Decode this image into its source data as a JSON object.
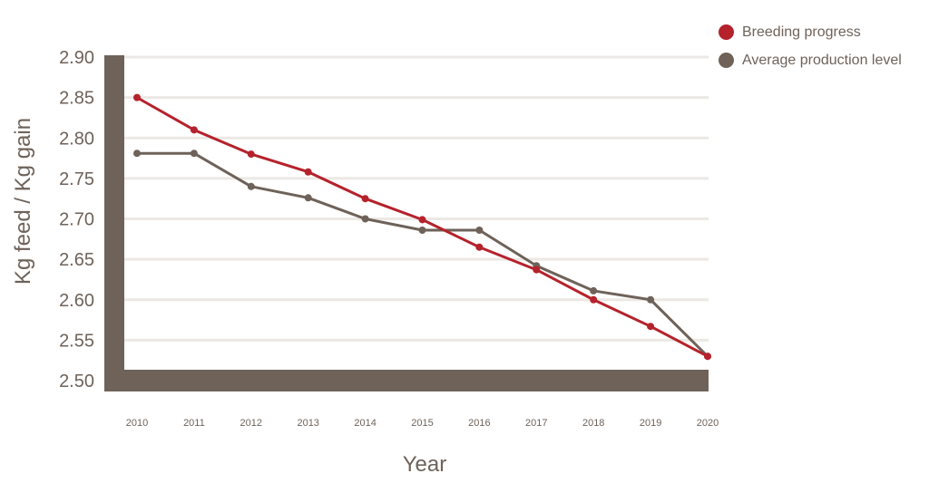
{
  "chart_data": {
    "type": "line",
    "title": "",
    "xlabel": "Year",
    "ylabel": "Kg feed / Kg gain",
    "x": [
      "2010",
      "2011",
      "2012",
      "2013",
      "2014",
      "2015",
      "2016",
      "2017",
      "2018",
      "2019",
      "2020"
    ],
    "ylim": [
      2.5,
      2.9
    ],
    "yticks": [
      "2.90",
      "2.85",
      "2.80",
      "2.75",
      "2.70",
      "2.65",
      "2.60",
      "2.55",
      "2.50"
    ],
    "grid": true,
    "legend_position": "top-right",
    "series": [
      {
        "name": "Breeding progress",
        "color": "#b5222b",
        "values": [
          2.85,
          2.81,
          2.78,
          2.758,
          2.725,
          2.699,
          2.665,
          2.637,
          2.6,
          2.567,
          2.53
        ]
      },
      {
        "name": "Average production level",
        "color": "#6e6259",
        "values": [
          2.781,
          2.781,
          2.74,
          2.726,
          2.7,
          2.686,
          2.686,
          2.642,
          2.611,
          2.6,
          2.53
        ]
      }
    ]
  },
  "legend": {
    "items": [
      {
        "label": "Breeding progress",
        "color": "#b5222b"
      },
      {
        "label": "Average production level",
        "color": "#6e6259"
      }
    ]
  },
  "axes": {
    "x_title": "Year",
    "y_title": "Kg feed / Kg gain",
    "frame_color": "#6e6259",
    "grid_color": "#ece8e4"
  }
}
